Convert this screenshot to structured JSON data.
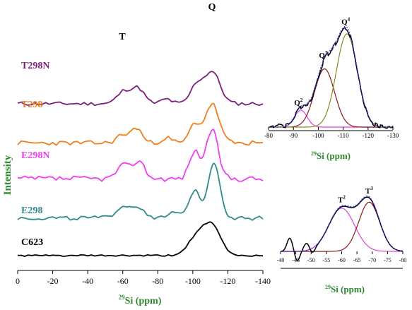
{
  "figure": {
    "ylabel": "Intensity",
    "ylabel_color": "#2e8b2e"
  },
  "chart_data": [
    {
      "type": "line",
      "panel": "main",
      "xlabel_sup": "29",
      "xlabel_main": "Si (ppm)",
      "xlim": [
        0,
        -140
      ],
      "x_ticks": [
        "0",
        "-20",
        "-40",
        "-60",
        "-80",
        "-100",
        "-120",
        "-140"
      ],
      "x_tick_values": [
        0,
        -20,
        -40,
        -60,
        -80,
        -100,
        -120,
        -140
      ],
      "y_axis": "stacked spectra, intensity (a.u.)",
      "annotations": [
        {
          "text": "T",
          "x": -60
        },
        {
          "text": "Q",
          "x": -110
        }
      ],
      "series": [
        {
          "name": "T298N",
          "color": "#7b1f7f",
          "baseline": 4.05,
          "peaks": [
            [
              -61,
              0.62,
              4
            ],
            [
              -69,
              0.7,
              3.5
            ],
            [
              -102,
              0.85,
              3.5
            ],
            [
              -111,
              1.55,
              4.5
            ],
            [
              -85,
              0.22,
              3
            ]
          ],
          "noise": 0.09,
          "seed": 11
        },
        {
          "name": "T298",
          "color": "#f07f1e",
          "baseline": 3.0,
          "peaks": [
            [
              -60,
              0.4,
              3.5
            ],
            [
              -68,
              0.72,
              3
            ],
            [
              -101,
              0.9,
              3
            ],
            [
              -111,
              1.9,
              4
            ],
            [
              -85,
              0.25,
              3
            ]
          ],
          "noise": 0.11,
          "seed": 23
        },
        {
          "name": "E298N",
          "color": "#ee3ff0",
          "baseline": 2.05,
          "peaks": [
            [
              -60,
              0.62,
              3.5
            ],
            [
              -69,
              0.85,
              3.5
            ],
            [
              -101,
              1.3,
              3
            ],
            [
              -111,
              2.35,
              3.5
            ]
          ],
          "noise": 0.13,
          "seed": 37
        },
        {
          "name": "E298",
          "color": "#2f8c8a",
          "baseline": 1.0,
          "peaks": [
            [
              -60,
              0.55,
              4
            ],
            [
              -69,
              0.5,
              4
            ],
            [
              -101,
              1.35,
              3
            ],
            [
              -112,
              2.7,
              3.5
            ],
            [
              -90,
              0.28,
              3
            ]
          ],
          "noise": 0.1,
          "seed": 49
        },
        {
          "name": "C623",
          "color": "#000000",
          "baseline": 0.0,
          "peaks": [
            [
              -102,
              0.85,
              5
            ],
            [
              -111,
              1.4,
              5
            ]
          ],
          "noise": 0.04,
          "seed": 61
        }
      ]
    },
    {
      "type": "line",
      "panel": "inset-Q",
      "xlabel_sup": "29",
      "xlabel_main": "Si (ppm)",
      "xlim": [
        -80,
        -130
      ],
      "x_ticks": [
        "-80",
        "-90",
        "-100",
        "-110",
        "-120",
        "-130"
      ],
      "x_tick_values": [
        -80,
        -90,
        -100,
        -110,
        -120,
        -130
      ],
      "peak_labels": [
        {
          "base": "Q",
          "sup": "2",
          "x": -92
        },
        {
          "base": "Q",
          "sup": "3",
          "x": -102
        },
        {
          "base": "Q",
          "sup": "4",
          "x": -111
        }
      ],
      "components": [
        {
          "label": "Q2",
          "center": -93,
          "height": 0.16,
          "width": 2.5,
          "color": "#e040e0"
        },
        {
          "label": "Q3",
          "center": -102.5,
          "height": 0.55,
          "width": 4.0,
          "color": "#8b1a1a"
        },
        {
          "label": "Q4",
          "center": -111.5,
          "height": 0.88,
          "width": 4.2,
          "color": "#8a8a1e"
        }
      ],
      "experimental_color": "#000000",
      "fit_color": "#3a3aff"
    },
    {
      "type": "line",
      "panel": "inset-T",
      "xlabel_sup": "29",
      "xlabel_main": "Si (ppm)",
      "xlim": [
        -40,
        -80
      ],
      "x_ticks": [
        "-40",
        "-45",
        "-50",
        "-55",
        "-60",
        "-65",
        "-70",
        "-75",
        "-80"
      ],
      "x_tick_values": [
        -40,
        -45,
        -50,
        -55,
        -60,
        -65,
        -70,
        -75,
        -80
      ],
      "peak_labels": [
        {
          "base": "T",
          "sup": "2",
          "x": -60
        },
        {
          "base": "T",
          "sup": "3",
          "x": -69
        }
      ],
      "components": [
        {
          "label": "T2",
          "center": -60,
          "height": 0.72,
          "width": 4.2,
          "color": "#e040e0"
        },
        {
          "label": "T3",
          "center": -69,
          "height": 0.82,
          "width": 3.4,
          "color": "#8b1a1a"
        }
      ],
      "experimental_color": "#000000",
      "fit_color": "#3a3aff"
    }
  ]
}
